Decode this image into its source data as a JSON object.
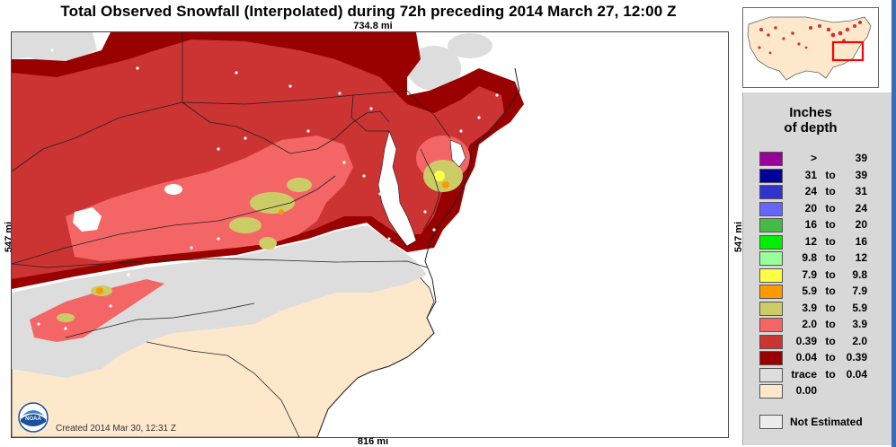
{
  "title": "Total Observed Snowfall (Interpolated) during 72h preceding 2014 March 27, 12:00 Z",
  "distances": {
    "top": "734.8 mi",
    "bottom": "816 mi",
    "left": "547 mi",
    "right": "547 mi"
  },
  "created_text": "Created 2014 Mar 30, 12:31 Z",
  "logo_text": "NOAA",
  "legend": {
    "title_line1": "Inches",
    "title_line2": "of depth",
    "rows": [
      {
        "lo": ">",
        "to": "",
        "hi": "39",
        "color": "#990099"
      },
      {
        "lo": "31",
        "to": "to",
        "hi": "39",
        "color": "#000099"
      },
      {
        "lo": "24",
        "to": "to",
        "hi": "31",
        "color": "#3333cc"
      },
      {
        "lo": "20",
        "to": "to",
        "hi": "24",
        "color": "#6666ff"
      },
      {
        "lo": "16",
        "to": "to",
        "hi": "20",
        "color": "#44bb44"
      },
      {
        "lo": "12",
        "to": "to",
        "hi": "16",
        "color": "#00ee00"
      },
      {
        "lo": "9.8",
        "to": "to",
        "hi": "12",
        "color": "#99ff99"
      },
      {
        "lo": "7.9",
        "to": "to",
        "hi": "9.8",
        "color": "#ffff44"
      },
      {
        "lo": "5.9",
        "to": "to",
        "hi": "7.9",
        "color": "#ff9900"
      },
      {
        "lo": "3.9",
        "to": "to",
        "hi": "5.9",
        "color": "#cccc66"
      },
      {
        "lo": "2.0",
        "to": "to",
        "hi": "3.9",
        "color": "#f46666"
      },
      {
        "lo": "0.39",
        "to": "to",
        "hi": "2.0",
        "color": "#cc3333"
      },
      {
        "lo": "0.04",
        "to": "to",
        "hi": "0.39",
        "color": "#990000"
      },
      {
        "lo": "trace",
        "to": "to",
        "hi": "0.04",
        "color": "#dddddd"
      },
      {
        "lo": "0.00",
        "to": "",
        "hi": "",
        "color": "#fde8cc"
      }
    ],
    "not_estimated": "Not Estimated"
  },
  "colors": {
    "ocean": "#ffffff",
    "zero": "#fde8cc",
    "trace": "#dddddd",
    "dark_red": "#990000",
    "mid_red": "#cc3333",
    "light_red": "#f46666",
    "olive": "#cccc66",
    "yellow": "#ffff44",
    "orange": "#ff9900",
    "border": "#222222",
    "inset_box": "#ff0000"
  }
}
